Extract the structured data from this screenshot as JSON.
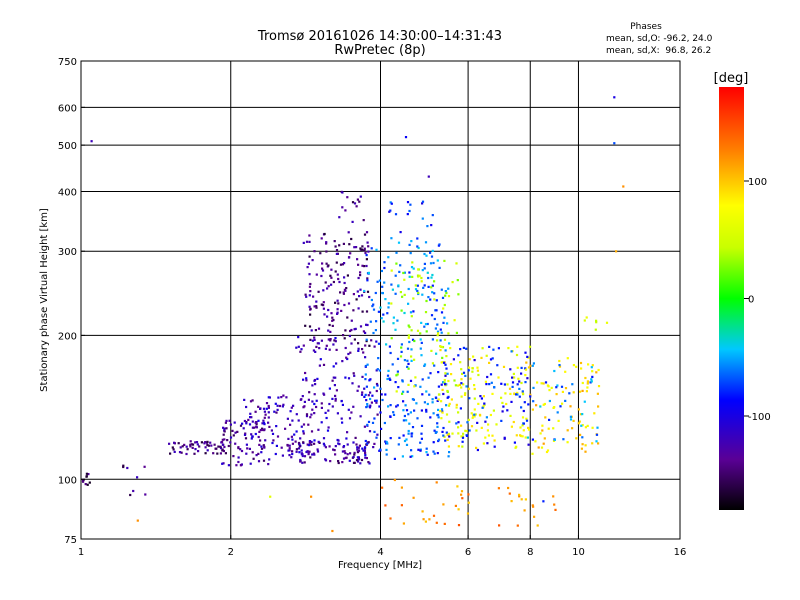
{
  "chart_data": {
    "type": "scatter",
    "title": "Tromsø 20161026 14:30:00–14:31:43",
    "subtitle": "RwPretec (8p)",
    "xlabel": "Frequency [MHz]",
    "ylabel": "Stationary phase Virtual Height [km]",
    "x_scale": "log",
    "y_scale": "log",
    "xlim": [
      1,
      16
    ],
    "ylim": [
      75,
      750
    ],
    "x_ticks": [
      1,
      2,
      4,
      6,
      8,
      10,
      16
    ],
    "x_tick_labels": [
      "1",
      "2",
      "4",
      "6",
      "8",
      "10",
      "16"
    ],
    "y_ticks": [
      75,
      100,
      200,
      300,
      400,
      500,
      600,
      750
    ],
    "y_tick_labels": [
      "75",
      "100",
      "200",
      "300",
      "400",
      "500",
      "600",
      "750"
    ],
    "grid": true,
    "stats": {
      "heading": "Phases",
      "line1": "mean, sd,O: -96.2, 24.0",
      "line2": "mean, sd,X:  96.8, 26.2"
    },
    "colorbar": {
      "unit_label": "[deg]",
      "range": [
        -180,
        180
      ],
      "ticks": [
        100,
        0,
        -100
      ],
      "tick_labels": [
        "100",
        "0",
        "-100"
      ]
    },
    "point_clusters": [
      {
        "xr": [
          1.0,
          1.06
        ],
        "yr": [
          97,
          103
        ],
        "phase": -150,
        "n": 10
      },
      {
        "xr": [
          1.2,
          1.35
        ],
        "yr": [
          91,
          107
        ],
        "phase": -140,
        "n": 8
      },
      {
        "xr": [
          1.5,
          2.0
        ],
        "yr": [
          113,
          121
        ],
        "phase": -140,
        "n": 60
      },
      {
        "xr": [
          1.9,
          2.4
        ],
        "yr": [
          107,
          135
        ],
        "phase": -130,
        "n": 70
      },
      {
        "xr": [
          2.1,
          2.9
        ],
        "yr": [
          112,
          150
        ],
        "phase": -120,
        "n": 110
      },
      {
        "xr": [
          2.8,
          3.8
        ],
        "yr": [
          190,
          330
        ],
        "phase": -140,
        "n": 180
      },
      {
        "xr": [
          3.3,
          3.7
        ],
        "yr": [
          340,
          400
        ],
        "phase": -140,
        "n": 14
      },
      {
        "xr": [
          2.7,
          4.0
        ],
        "yr": [
          112,
          200
        ],
        "phase": -120,
        "n": 150
      },
      {
        "xr": [
          2.6,
          3.8
        ],
        "yr": [
          108,
          120
        ],
        "phase": -130,
        "n": 90
      },
      {
        "xr": [
          3.7,
          5.5
        ],
        "yr": [
          180,
          320
        ],
        "phase": -60,
        "n": 140
      },
      {
        "xr": [
          3.7,
          5.5
        ],
        "yr": [
          110,
          180
        ],
        "phase": -70,
        "n": 170
      },
      {
        "xr": [
          4.2,
          5.8
        ],
        "yr": [
          150,
          290
        ],
        "phase": 40,
        "n": 80
      },
      {
        "xr": [
          4.1,
          5.2
        ],
        "yr": [
          320,
          390
        ],
        "phase": -80,
        "n": 16
      },
      {
        "xr": [
          5.2,
          8.0
        ],
        "yr": [
          115,
          190
        ],
        "phase": 70,
        "n": 140
      },
      {
        "xr": [
          5.2,
          8.0
        ],
        "yr": [
          115,
          190
        ],
        "phase": -80,
        "n": 90
      },
      {
        "xr": [
          7.8,
          11.0
        ],
        "yr": [
          112,
          180
        ],
        "phase": 90,
        "n": 90
      },
      {
        "xr": [
          7.8,
          11.0
        ],
        "yr": [
          120,
          175
        ],
        "phase": -60,
        "n": 40
      },
      {
        "xr": [
          4.0,
          9.0
        ],
        "yr": [
          80,
          100
        ],
        "phase": 120,
        "n": 45
      },
      {
        "xr": [
          9.5,
          12.5
        ],
        "yr": [
          200,
          220
        ],
        "phase": 60,
        "n": 6
      }
    ],
    "points": [
      {
        "x": 1.05,
        "y": 510,
        "phase": -120
      },
      {
        "x": 4.5,
        "y": 520,
        "phase": -90
      },
      {
        "x": 5.0,
        "y": 430,
        "phase": -120
      },
      {
        "x": 11.8,
        "y": 630,
        "phase": -100
      },
      {
        "x": 11.8,
        "y": 505,
        "phase": -70
      },
      {
        "x": 12.3,
        "y": 410,
        "phase": 120
      },
      {
        "x": 11.9,
        "y": 300,
        "phase": 110
      },
      {
        "x": 1.3,
        "y": 82,
        "phase": 120
      },
      {
        "x": 3.2,
        "y": 78,
        "phase": 120
      },
      {
        "x": 2.9,
        "y": 92,
        "phase": 120
      },
      {
        "x": 2.4,
        "y": 92,
        "phase": 60
      },
      {
        "x": 8.5,
        "y": 90,
        "phase": -80
      }
    ]
  }
}
